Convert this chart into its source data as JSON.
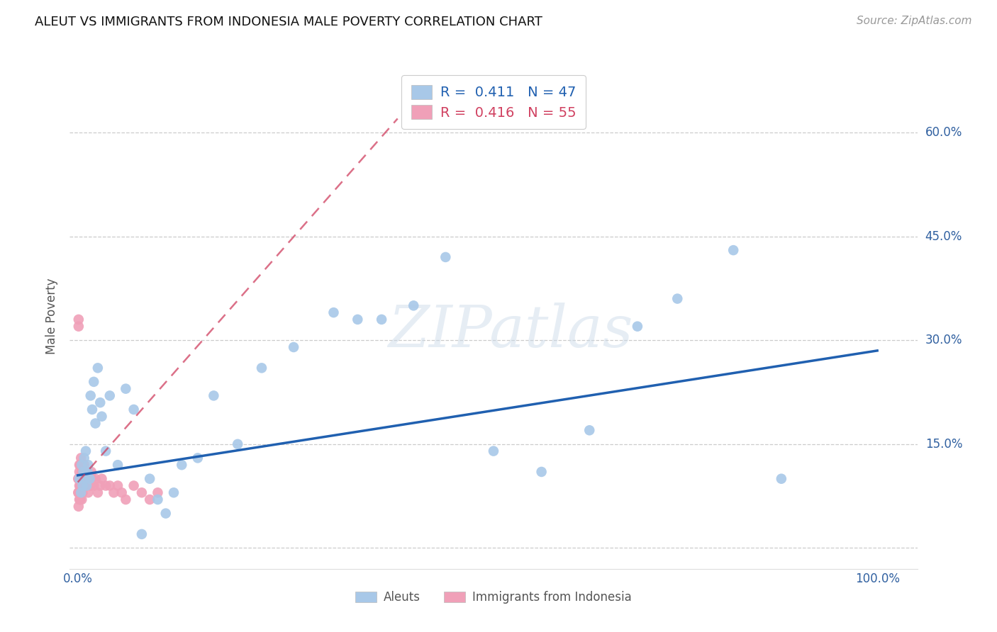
{
  "title": "ALEUT VS IMMIGRANTS FROM INDONESIA MALE POVERTY CORRELATION CHART",
  "source": "Source: ZipAtlas.com",
  "ylabel": "Male Poverty",
  "series1_label": "Aleuts",
  "series1_R": "0.411",
  "series1_N": "47",
  "series1_color": "#a8c8e8",
  "series1_line_color": "#2060b0",
  "series2_label": "Immigrants from Indonesia",
  "series2_R": "0.416",
  "series2_N": "55",
  "series2_color": "#f0a0b8",
  "series2_line_color": "#d04060",
  "ytick_vals": [
    0.0,
    0.15,
    0.3,
    0.45,
    0.6
  ],
  "ylim": [
    -0.03,
    0.7
  ],
  "xlim": [
    -0.01,
    1.05
  ],
  "aleuts_x": [
    0.002,
    0.004,
    0.005,
    0.006,
    0.007,
    0.008,
    0.009,
    0.01,
    0.011,
    0.012,
    0.013,
    0.015,
    0.016,
    0.018,
    0.02,
    0.022,
    0.025,
    0.028,
    0.03,
    0.035,
    0.04,
    0.05,
    0.06,
    0.07,
    0.08,
    0.09,
    0.1,
    0.11,
    0.12,
    0.13,
    0.15,
    0.17,
    0.2,
    0.23,
    0.27,
    0.32,
    0.35,
    0.38,
    0.42,
    0.46,
    0.52,
    0.58,
    0.64,
    0.7,
    0.75,
    0.82,
    0.88
  ],
  "aleuts_y": [
    0.1,
    0.08,
    0.12,
    0.09,
    0.11,
    0.13,
    0.1,
    0.14,
    0.09,
    0.11,
    0.12,
    0.1,
    0.22,
    0.2,
    0.24,
    0.18,
    0.26,
    0.21,
    0.19,
    0.14,
    0.22,
    0.12,
    0.23,
    0.2,
    0.02,
    0.1,
    0.07,
    0.05,
    0.08,
    0.12,
    0.13,
    0.22,
    0.15,
    0.26,
    0.29,
    0.34,
    0.33,
    0.33,
    0.35,
    0.42,
    0.14,
    0.11,
    0.17,
    0.32,
    0.36,
    0.43,
    0.1
  ],
  "indonesia_x": [
    0.0005,
    0.0005,
    0.001,
    0.001,
    0.001,
    0.001,
    0.001,
    0.002,
    0.002,
    0.002,
    0.002,
    0.002,
    0.003,
    0.003,
    0.003,
    0.003,
    0.004,
    0.004,
    0.004,
    0.005,
    0.005,
    0.005,
    0.006,
    0.006,
    0.006,
    0.007,
    0.007,
    0.008,
    0.008,
    0.009,
    0.009,
    0.01,
    0.011,
    0.012,
    0.013,
    0.014,
    0.015,
    0.016,
    0.017,
    0.018,
    0.02,
    0.022,
    0.025,
    0.028,
    0.03,
    0.035,
    0.04,
    0.045,
    0.05,
    0.055,
    0.06,
    0.07,
    0.08,
    0.09,
    0.1
  ],
  "indonesia_y": [
    0.1,
    0.08,
    0.32,
    0.33,
    0.1,
    0.08,
    0.06,
    0.12,
    0.09,
    0.07,
    0.11,
    0.08,
    0.1,
    0.12,
    0.09,
    0.07,
    0.13,
    0.1,
    0.08,
    0.11,
    0.09,
    0.07,
    0.1,
    0.12,
    0.08,
    0.11,
    0.09,
    0.1,
    0.12,
    0.09,
    0.11,
    0.1,
    0.09,
    0.11,
    0.08,
    0.1,
    0.1,
    0.09,
    0.11,
    0.1,
    0.09,
    0.1,
    0.08,
    0.09,
    0.1,
    0.09,
    0.09,
    0.08,
    0.09,
    0.08,
    0.07,
    0.09,
    0.08,
    0.07,
    0.08
  ],
  "blue_line_x": [
    0.0,
    1.0
  ],
  "blue_line_y": [
    0.105,
    0.285
  ],
  "pink_line_x": [
    0.0,
    0.4
  ],
  "pink_line_y": [
    0.095,
    0.62
  ]
}
